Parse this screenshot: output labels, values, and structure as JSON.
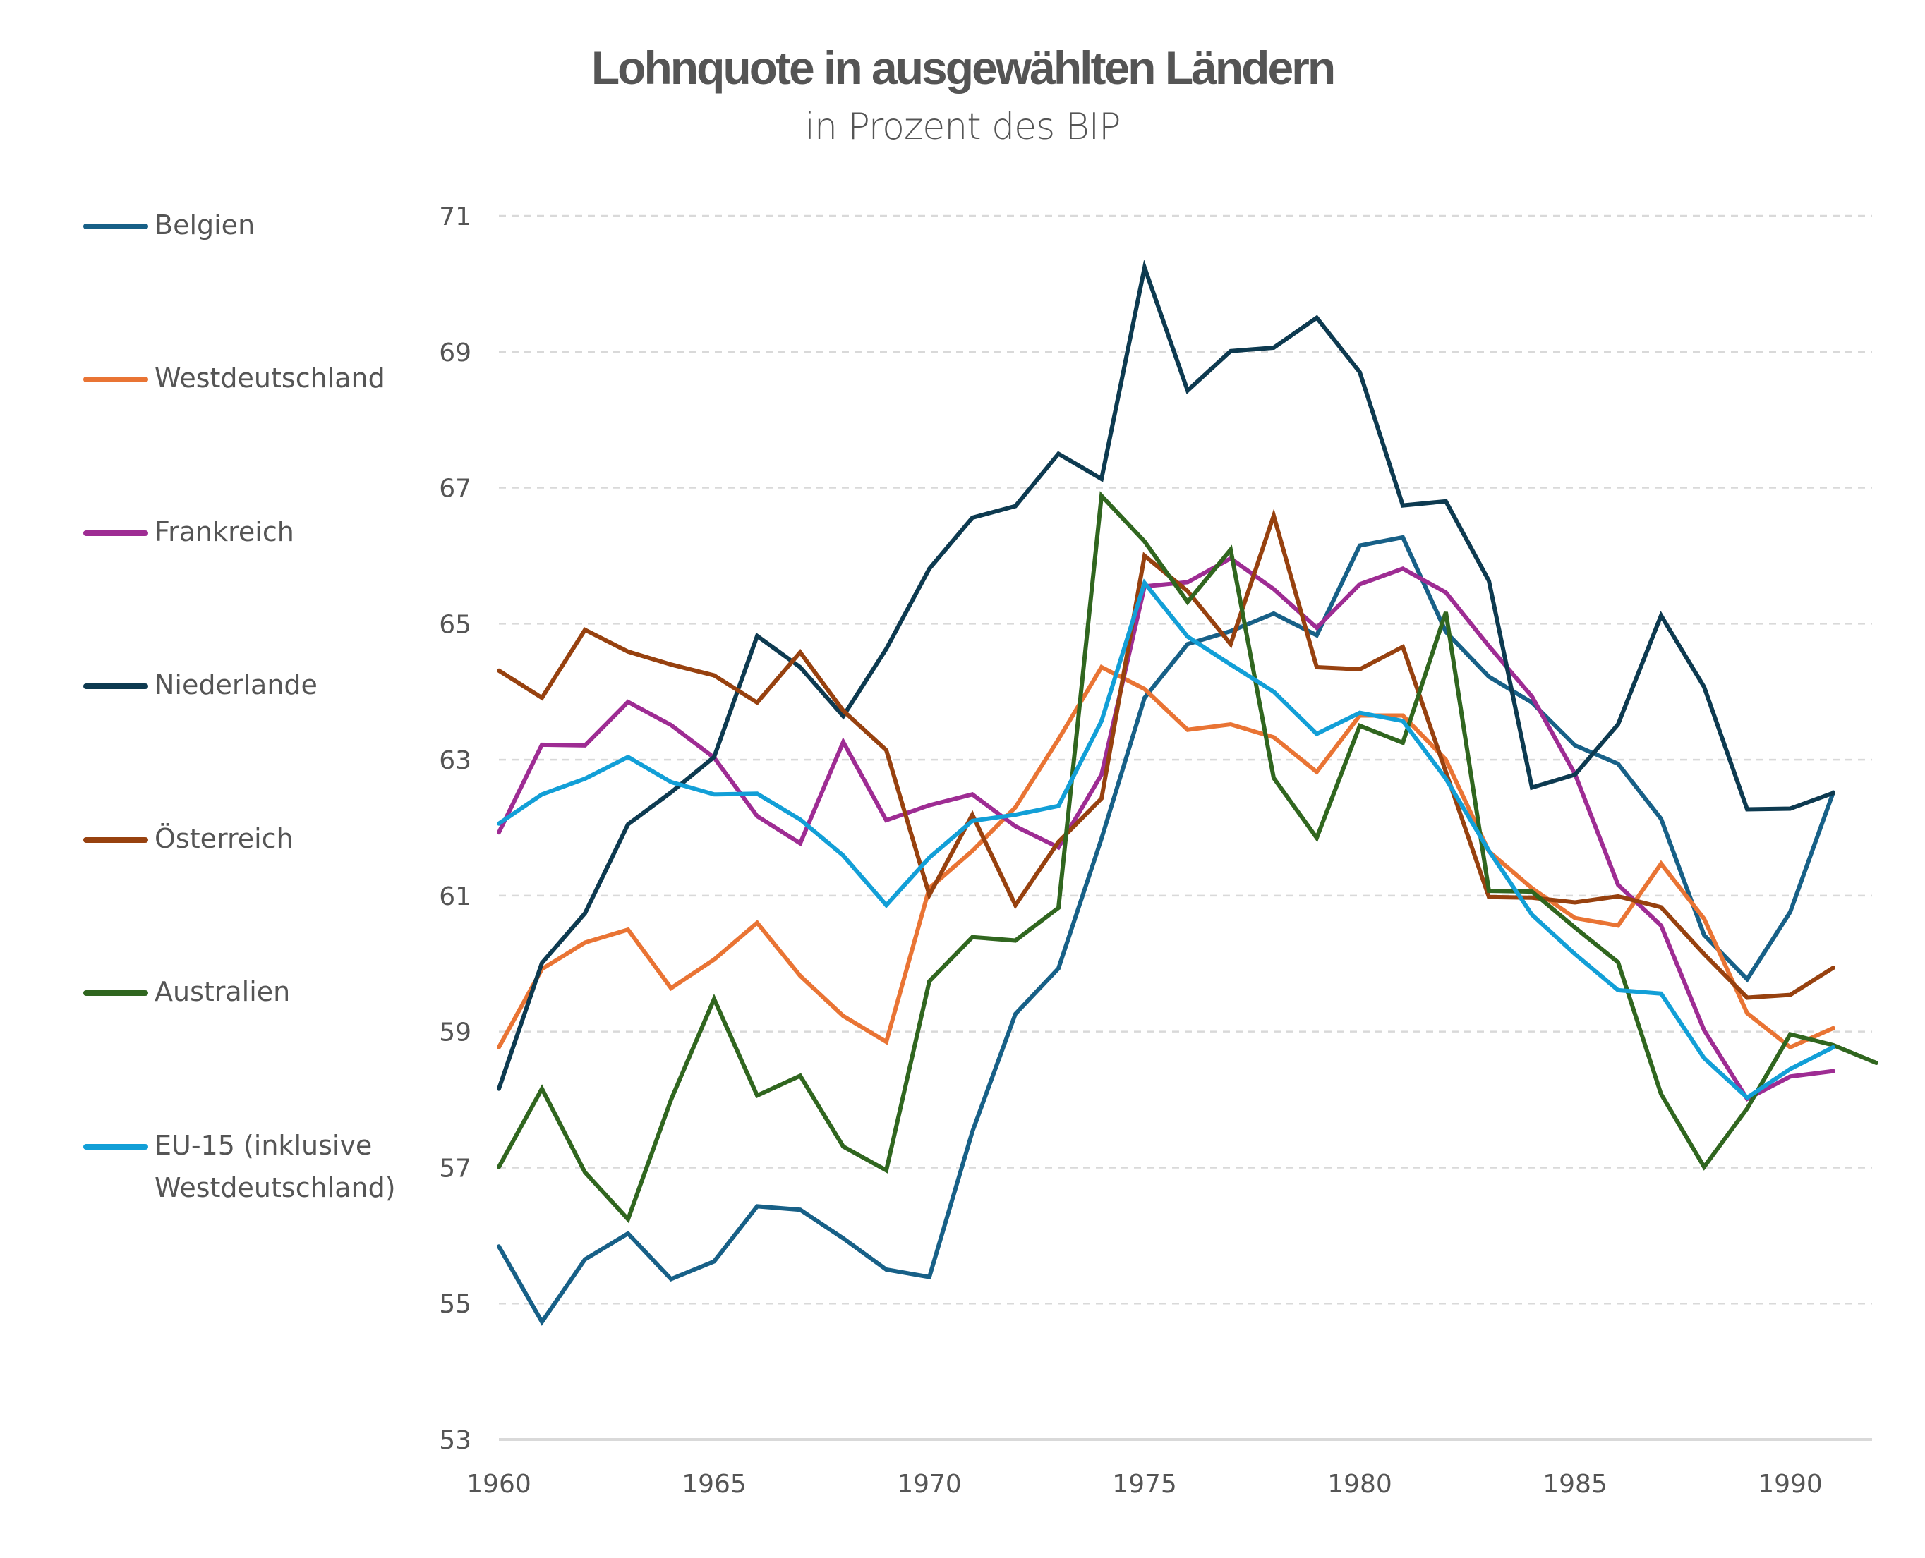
{
  "header": {
    "title": "Lohnquote in ausgewählten Ländern",
    "subtitle": "in Prozent des BIP"
  },
  "legend": [
    {
      "label": "Belgien",
      "color": "#176087"
    },
    {
      "label": "Westdeutschland",
      "color": "#E97434"
    },
    {
      "label": "Frankreich",
      "color": "#9E2C93"
    },
    {
      "label": "Niederlande",
      "color": "#0D3A50"
    },
    {
      "label": "Österreich",
      "color": "#97410F"
    },
    {
      "label": "Australien",
      "color": "#30661F"
    },
    {
      "label": "EU-15 (inklusive\nWestdeutschland)",
      "color": "#129FD7"
    }
  ],
  "chart_data": {
    "type": "line",
    "title": "Lohnquote in ausgewählten Ländern",
    "subtitle": "in Prozent des BIP",
    "xlabel": "",
    "ylabel": "",
    "xlim": [
      1960,
      1992
    ],
    "ylim": [
      53,
      71
    ],
    "grid": true,
    "legend_position": "left",
    "x_ticks": [
      1960,
      1965,
      1970,
      1975,
      1980,
      1985,
      1990
    ],
    "x_tick_labels": [
      "1960",
      "1965",
      "1970",
      "1975",
      "1980",
      "1985",
      "1990"
    ],
    "y_ticks": [
      53,
      55,
      57,
      59,
      61,
      63,
      65,
      67,
      69,
      71
    ],
    "y_tick_labels": [
      "53",
      "55",
      "57",
      "59",
      "61",
      "63",
      "65",
      "67",
      "69",
      "71"
    ],
    "series": [
      {
        "name": "Belgien",
        "color": "#176087",
        "start_year": 1960,
        "values": [
          55.84,
          54.73,
          55.65,
          56.03,
          55.36,
          55.62,
          56.43,
          56.38,
          55.96,
          55.5,
          55.39,
          57.53,
          59.26,
          59.93,
          61.84,
          63.91,
          64.7,
          64.89,
          65.15,
          64.83,
          66.15,
          66.27,
          64.88,
          64.22,
          63.84,
          63.21,
          62.94,
          62.13,
          60.42,
          59.77,
          60.76,
          62.52
        ]
      },
      {
        "name": "Westdeutschland",
        "color": "#E97434",
        "start_year": 1960,
        "values": [
          58.77,
          59.92,
          60.31,
          60.5,
          59.64,
          60.06,
          60.6,
          59.82,
          59.23,
          58.85,
          61.11,
          61.66,
          62.3,
          63.3,
          64.36,
          64.04,
          63.44,
          63.52,
          63.33,
          62.82,
          63.65,
          63.65,
          63.0,
          61.65,
          61.11,
          60.67,
          60.56,
          61.47,
          60.66,
          59.27,
          58.77,
          59.05
        ]
      },
      {
        "name": "Frankreich",
        "color": "#9E2C93",
        "start_year": 1960,
        "values": [
          61.93,
          63.22,
          63.21,
          63.85,
          63.51,
          63.03,
          62.17,
          61.77,
          63.26,
          62.11,
          62.33,
          62.49,
          62.02,
          61.71,
          62.78,
          65.55,
          65.61,
          65.96,
          65.51,
          64.94,
          65.58,
          65.81,
          65.46,
          64.67,
          63.93,
          62.79,
          61.16,
          60.56,
          59.02,
          58.01,
          58.34,
          58.42
        ]
      },
      {
        "name": "Niederlande",
        "color": "#0D3A50",
        "start_year": 1960,
        "values": [
          58.16,
          60.01,
          60.74,
          62.05,
          62.52,
          63.04,
          64.82,
          64.36,
          63.64,
          64.63,
          65.81,
          66.56,
          66.73,
          67.5,
          67.13,
          70.24,
          68.43,
          69.01,
          69.06,
          69.5,
          68.7,
          66.74,
          66.8,
          65.63,
          62.59,
          62.78,
          63.52,
          65.12,
          64.07,
          62.27,
          62.28,
          62.51
        ]
      },
      {
        "name": "Österreich",
        "color": "#97410F",
        "start_year": 1960,
        "values": [
          64.31,
          63.91,
          64.91,
          64.59,
          64.4,
          64.24,
          63.84,
          64.58,
          63.72,
          63.14,
          61.01,
          62.19,
          60.86,
          61.79,
          62.43,
          66.0,
          65.48,
          64.7,
          66.59,
          64.36,
          64.33,
          64.66,
          62.82,
          60.98,
          60.97,
          60.9,
          60.99,
          60.83,
          60.14,
          59.5,
          59.54,
          59.94
        ]
      },
      {
        "name": "Australien",
        "color": "#30661F",
        "start_year": 1960,
        "values": [
          57.01,
          58.16,
          56.93,
          56.24,
          58.0,
          59.48,
          58.06,
          58.35,
          57.31,
          56.96,
          59.74,
          60.39,
          60.34,
          60.82,
          66.88,
          66.21,
          65.32,
          66.09,
          62.73,
          61.85,
          63.5,
          63.25,
          65.17,
          61.07,
          61.06,
          60.53,
          60.02,
          58.08,
          57.01,
          57.87,
          58.96,
          58.8,
          58.54
        ]
      },
      {
        "name": "EU-15 (inklusive Westdeutschland)",
        "color": "#129FD7",
        "start_year": 1960,
        "values": [
          62.06,
          62.49,
          62.72,
          63.04,
          62.67,
          62.49,
          62.5,
          62.12,
          61.59,
          60.86,
          61.56,
          62.1,
          62.19,
          62.32,
          63.57,
          65.6,
          64.81,
          64.4,
          64.0,
          63.38,
          63.69,
          63.57,
          62.72,
          61.66,
          60.72,
          60.14,
          59.61,
          59.56,
          58.61,
          58.03,
          58.45,
          58.77
        ]
      }
    ]
  }
}
